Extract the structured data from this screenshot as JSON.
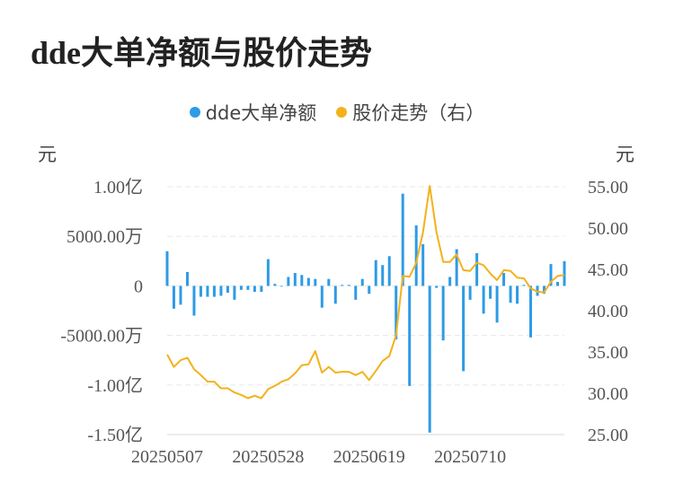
{
  "title": "dde大单净额与股价走势",
  "legend": [
    {
      "name": "dde大单净额",
      "color": "#2e9be6"
    },
    {
      "name": "股价走势（右）",
      "color": "#f2b21c"
    }
  ],
  "units": {
    "left": "元",
    "right": "元"
  },
  "chart_data": {
    "type": "bar+line",
    "title": "dde大单净额与股价走势",
    "x_ticks": [
      "20250507",
      "20250528",
      "20250619",
      "20250710"
    ],
    "left_axis": {
      "ticks": [
        {
          "v": 100000000,
          "label": "1.00亿"
        },
        {
          "v": 50000000,
          "label": "5000.00万"
        },
        {
          "v": 0,
          "label": "0"
        },
        {
          "v": -50000000,
          "label": "-5000.00万"
        },
        {
          "v": -100000000,
          "label": "-1.00亿"
        },
        {
          "v": -150000000,
          "label": "-1.50亿"
        }
      ],
      "range": [
        -150000000,
        100000000
      ]
    },
    "right_axis": {
      "ticks": [
        {
          "v": 55,
          "label": "55.00"
        },
        {
          "v": 50,
          "label": "50.00"
        },
        {
          "v": 45,
          "label": "45.00"
        },
        {
          "v": 40,
          "label": "40.00"
        },
        {
          "v": 35,
          "label": "35.00"
        },
        {
          "v": 30,
          "label": "30.00"
        },
        {
          "v": 25,
          "label": "25.00"
        }
      ],
      "range": [
        25,
        55
      ]
    },
    "series": [
      {
        "name": "dde大单净额",
        "type": "bar",
        "values": [
          35000000,
          -23000000,
          -19000000,
          14000000,
          -30000000,
          -11000000,
          -11000000,
          -11000000,
          -10000000,
          -7000000,
          -14000000,
          -4000000,
          -4000000,
          -6000000,
          -6000000,
          27000000,
          2000000,
          0,
          9000000,
          13000000,
          11000000,
          8000000,
          7000000,
          -22000000,
          7000000,
          -18000000,
          1000000,
          1000000,
          -14000000,
          7000000,
          -8000000,
          26000000,
          21000000,
          30000000,
          -54000000,
          93000000,
          -101000000,
          61000000,
          42000000,
          -148000000,
          -2000000,
          -55000000,
          9000000,
          37000000,
          -86000000,
          -14000000,
          33000000,
          -28000000,
          -13000000,
          -37000000,
          13000000,
          -17000000,
          -18000000,
          1000000,
          -52000000,
          -10000000,
          -8000000,
          22000000,
          4000000,
          25000000
        ]
      },
      {
        "name": "股价走势（右）",
        "type": "line",
        "values": [
          34.7,
          33.2,
          34.0,
          34.3,
          32.9,
          32.2,
          31.4,
          31.4,
          30.6,
          30.6,
          30.1,
          29.8,
          29.4,
          29.7,
          29.4,
          30.5,
          30.9,
          31.4,
          31.7,
          32.4,
          33.4,
          33.5,
          35.1,
          32.5,
          33.2,
          32.5,
          32.6,
          32.6,
          32.2,
          32.6,
          31.6,
          32.7,
          33.9,
          34.5,
          37.0,
          44.2,
          44.1,
          45.8,
          49.5,
          55.1,
          49.5,
          45.9,
          45.9,
          46.8,
          44.9,
          44.8,
          45.8,
          45.5,
          44.5,
          43.7,
          44.9,
          44.8,
          44.0,
          43.9,
          42.7,
          42.3,
          42.2,
          43.5,
          44.2,
          44.3
        ]
      }
    ]
  }
}
